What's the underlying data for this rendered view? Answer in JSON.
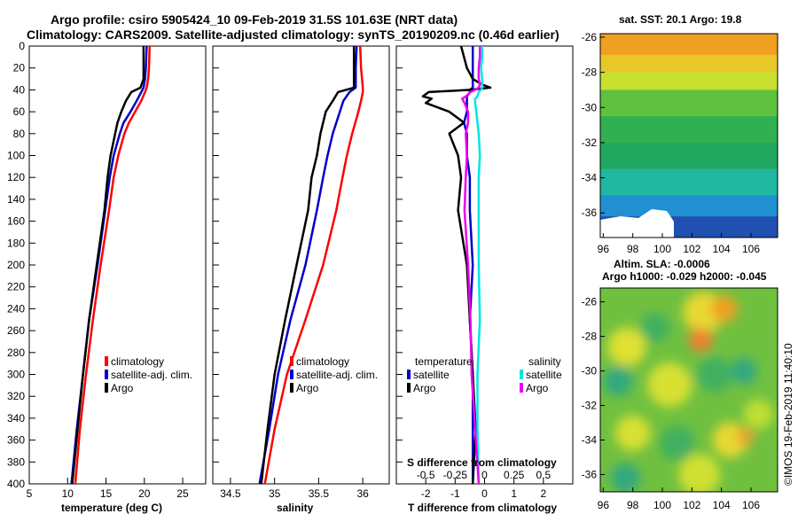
{
  "figure": {
    "title_line1": "Argo profile: csiro 5905424_10 09-Feb-2019 31.5S 101.63E (NRT data)",
    "title_line2": "Climatology: CARS2009. Satellite-adjusted climatology: synTS_20190209.nc (0.46d earlier)",
    "credit": "©IMOS 19-Feb-2019 11:40:10"
  },
  "colors": {
    "climatology": "#ff0000",
    "satellite": "#0000cc",
    "argo": "#000000",
    "sat_salinity": "#00e5e5",
    "argo_salinity": "#ee00ee"
  },
  "chart_data": [
    {
      "type": "line",
      "id": "temperature",
      "xlabel": "temperature (deg C)",
      "ylabel": "",
      "xlim": [
        5,
        28
      ],
      "ylim": [
        400,
        0
      ],
      "xticks": [
        "5",
        "10",
        "15",
        "20",
        "25"
      ],
      "yticks": [
        "0",
        "20",
        "40",
        "60",
        "80",
        "100",
        "120",
        "140",
        "160",
        "180",
        "200",
        "220",
        "240",
        "260",
        "280",
        "300",
        "320",
        "340",
        "360",
        "380",
        "400"
      ],
      "legend": [
        "climatology",
        "satellite-adj. clim.",
        "Argo"
      ],
      "depth": [
        0,
        20,
        30,
        38,
        42,
        50,
        60,
        70,
        80,
        100,
        120,
        150,
        200,
        250,
        300,
        350,
        400
      ],
      "series": [
        {
          "name": "climatology",
          "color": "#ff0000",
          "values": [
            20.7,
            20.6,
            20.5,
            20.3,
            20.1,
            19.6,
            18.8,
            18.0,
            17.4,
            16.6,
            16.0,
            15.4,
            14.3,
            13.3,
            12.4,
            11.6,
            11.0
          ]
        },
        {
          "name": "satellite-adj. clim.",
          "color": "#0000cc",
          "values": [
            20.3,
            20.2,
            20.1,
            19.9,
            19.6,
            19.0,
            18.2,
            17.3,
            16.8,
            16.0,
            15.5,
            14.9,
            13.9,
            12.8,
            12.0,
            11.2,
            10.5
          ]
        },
        {
          "name": "Argo",
          "color": "#000000",
          "values": [
            19.9,
            19.9,
            19.9,
            19.5,
            18.3,
            17.6,
            17.0,
            16.5,
            16.2,
            15.6,
            15.2,
            14.8,
            13.8,
            12.8,
            12.0,
            11.3,
            10.6
          ]
        }
      ]
    },
    {
      "type": "line",
      "id": "salinity",
      "xlabel": "salinity",
      "ylabel": "",
      "xlim": [
        34.3,
        36.3
      ],
      "ylim": [
        400,
        0
      ],
      "xticks": [
        "34.5",
        "35",
        "35.5",
        "36"
      ],
      "legend": [
        "climatology",
        "satellite-adj. clim.",
        "Argo"
      ],
      "depth": [
        0,
        20,
        38,
        42,
        50,
        60,
        80,
        100,
        120,
        150,
        200,
        250,
        300,
        350,
        400
      ],
      "series": [
        {
          "name": "climatology",
          "color": "#ff0000",
          "values": [
            35.97,
            35.98,
            36.0,
            36.0,
            35.98,
            35.95,
            35.88,
            35.82,
            35.77,
            35.7,
            35.55,
            35.35,
            35.14,
            35.0,
            34.89
          ]
        },
        {
          "name": "satellite-adj. clim.",
          "color": "#0000cc",
          "values": [
            35.93,
            35.92,
            35.92,
            35.85,
            35.78,
            35.74,
            35.66,
            35.6,
            35.55,
            35.48,
            35.35,
            35.18,
            35.04,
            34.94,
            34.83
          ]
        },
        {
          "name": "Argo",
          "color": "#000000",
          "values": [
            35.9,
            35.9,
            35.9,
            35.72,
            35.66,
            35.58,
            35.52,
            35.48,
            35.42,
            35.38,
            35.25,
            35.12,
            35.0,
            34.92,
            34.85
          ]
        }
      ]
    },
    {
      "type": "line",
      "id": "difference",
      "xlabel": "T difference from climatology",
      "xlabel_top": "S difference from climatology",
      "xlim": [
        -3,
        3
      ],
      "ylim": [
        400,
        0
      ],
      "xticks": [
        "-2",
        "-1",
        "0",
        "1",
        "2"
      ],
      "xticks_s": [
        "-0.5",
        "-0.25",
        "0",
        "0.25",
        "0.5"
      ],
      "legend_titles": [
        "temperature",
        "salinity"
      ],
      "legend": [
        "satellite",
        "Argo",
        "satellite",
        "Argo"
      ],
      "depth": [
        0,
        10,
        20,
        30,
        35,
        38,
        40,
        42,
        46,
        48,
        52,
        60,
        70,
        80,
        100,
        120,
        150,
        200,
        250,
        300,
        350,
        400
      ],
      "series": [
        {
          "name": "T satellite",
          "color": "#0000cc",
          "values": [
            -0.4,
            -0.4,
            -0.4,
            -0.4,
            -0.4,
            -0.4,
            -0.5,
            -0.5,
            -0.6,
            -0.6,
            -0.6,
            -0.6,
            -0.7,
            -0.6,
            -0.6,
            -0.5,
            -0.5,
            -0.4,
            -0.5,
            -0.4,
            -0.4,
            -0.4
          ]
        },
        {
          "name": "T Argo",
          "color": "#000000",
          "values": [
            -0.8,
            -0.7,
            -0.6,
            -0.4,
            -0.1,
            0.2,
            -0.5,
            -1.9,
            -2.1,
            -1.8,
            -2.0,
            -1.2,
            -0.7,
            -1.2,
            -0.9,
            -0.8,
            -0.9,
            -0.6,
            -0.5,
            -0.4,
            -0.3,
            -0.4
          ]
        },
        {
          "name": "S satellite",
          "color": "#00e5e5",
          "values": [
            -0.02,
            -0.02,
            -0.03,
            -0.02,
            -0.02,
            -0.02,
            -0.03,
            -0.05,
            -0.06,
            -0.08,
            -0.08,
            -0.07,
            -0.06,
            -0.05,
            -0.04,
            -0.05,
            -0.05,
            -0.05,
            -0.04,
            -0.06,
            -0.06,
            -0.05
          ]
        },
        {
          "name": "S Argo",
          "color": "#ee00ee",
          "values": [
            -0.04,
            -0.04,
            -0.05,
            -0.05,
            -0.04,
            -0.05,
            -0.08,
            -0.12,
            -0.16,
            -0.19,
            -0.17,
            -0.14,
            -0.14,
            -0.16,
            -0.15,
            -0.16,
            -0.17,
            -0.14,
            -0.12,
            -0.11,
            -0.08,
            -0.05
          ]
        }
      ]
    },
    {
      "type": "heatmap",
      "id": "sst_map",
      "title": "sat. SST: 20.1  Argo: 19.8",
      "xlim": [
        95.8,
        107.8
      ],
      "ylim": [
        -37.4,
        -25.8
      ],
      "xticks": [
        "96",
        "98",
        "100",
        "102",
        "104",
        "106"
      ],
      "yticks": [
        "-26",
        "-28",
        "-30",
        "-32",
        "-34",
        "-36"
      ],
      "bands": [
        {
          "lat": -25.8,
          "color": "#f0a020"
        },
        {
          "lat": -27.0,
          "color": "#e8c828"
        },
        {
          "lat": -28.0,
          "color": "#c8e030"
        },
        {
          "lat": -29.0,
          "color": "#60c040"
        },
        {
          "lat": -30.5,
          "color": "#30b050"
        },
        {
          "lat": -32.0,
          "color": "#20a860"
        },
        {
          "lat": -33.5,
          "color": "#20b8a0"
        },
        {
          "lat": -35.0,
          "color": "#2090d0"
        },
        {
          "lat": -36.2,
          "color": "#2050b0"
        }
      ]
    },
    {
      "type": "heatmap",
      "id": "sla_map",
      "title_line1": "Altim. SLA: -0.0006",
      "title_line2": "Argo h1000: -0.029  h2000: -0.045",
      "xlim": [
        95.8,
        107.8
      ],
      "ylim": [
        -37.0,
        -25.2
      ],
      "xticks": [
        "96",
        "98",
        "100",
        "102",
        "104",
        "106"
      ],
      "yticks": [
        "-26",
        "-28",
        "-30",
        "-32",
        "-34",
        "-36"
      ],
      "base_color": "#70c040",
      "blobs": [
        {
          "lon": 102.8,
          "lat": -26.6,
          "r": 1.4,
          "color": "#e8d830"
        },
        {
          "lon": 104.2,
          "lat": -26.4,
          "r": 0.9,
          "color": "#f0a020"
        },
        {
          "lon": 102.6,
          "lat": -28.2,
          "r": 0.8,
          "color": "#f08030"
        },
        {
          "lon": 97.6,
          "lat": -28.6,
          "r": 1.3,
          "color": "#e0e030"
        },
        {
          "lon": 99.5,
          "lat": -27.5,
          "r": 1.0,
          "color": "#40b060"
        },
        {
          "lon": 97.0,
          "lat": -30.6,
          "r": 1.0,
          "color": "#30a880"
        },
        {
          "lon": 100.5,
          "lat": -30.8,
          "r": 1.5,
          "color": "#d8e030"
        },
        {
          "lon": 103.5,
          "lat": -30.2,
          "r": 1.2,
          "color": "#40b060"
        },
        {
          "lon": 105.5,
          "lat": -30.0,
          "r": 0.9,
          "color": "#30a880"
        },
        {
          "lon": 106.5,
          "lat": -32.5,
          "r": 1.0,
          "color": "#c0e030"
        },
        {
          "lon": 98.0,
          "lat": -33.6,
          "r": 1.2,
          "color": "#d8e030"
        },
        {
          "lon": 101.0,
          "lat": -34.2,
          "r": 1.2,
          "color": "#40b060"
        },
        {
          "lon": 104.6,
          "lat": -34.0,
          "r": 1.2,
          "color": "#e8d830"
        },
        {
          "lon": 105.6,
          "lat": -33.8,
          "r": 0.6,
          "color": "#f0a030"
        },
        {
          "lon": 102.5,
          "lat": -36.0,
          "r": 1.4,
          "color": "#d0e030"
        },
        {
          "lon": 97.5,
          "lat": -36.2,
          "r": 1.0,
          "color": "#30a880"
        }
      ]
    }
  ]
}
